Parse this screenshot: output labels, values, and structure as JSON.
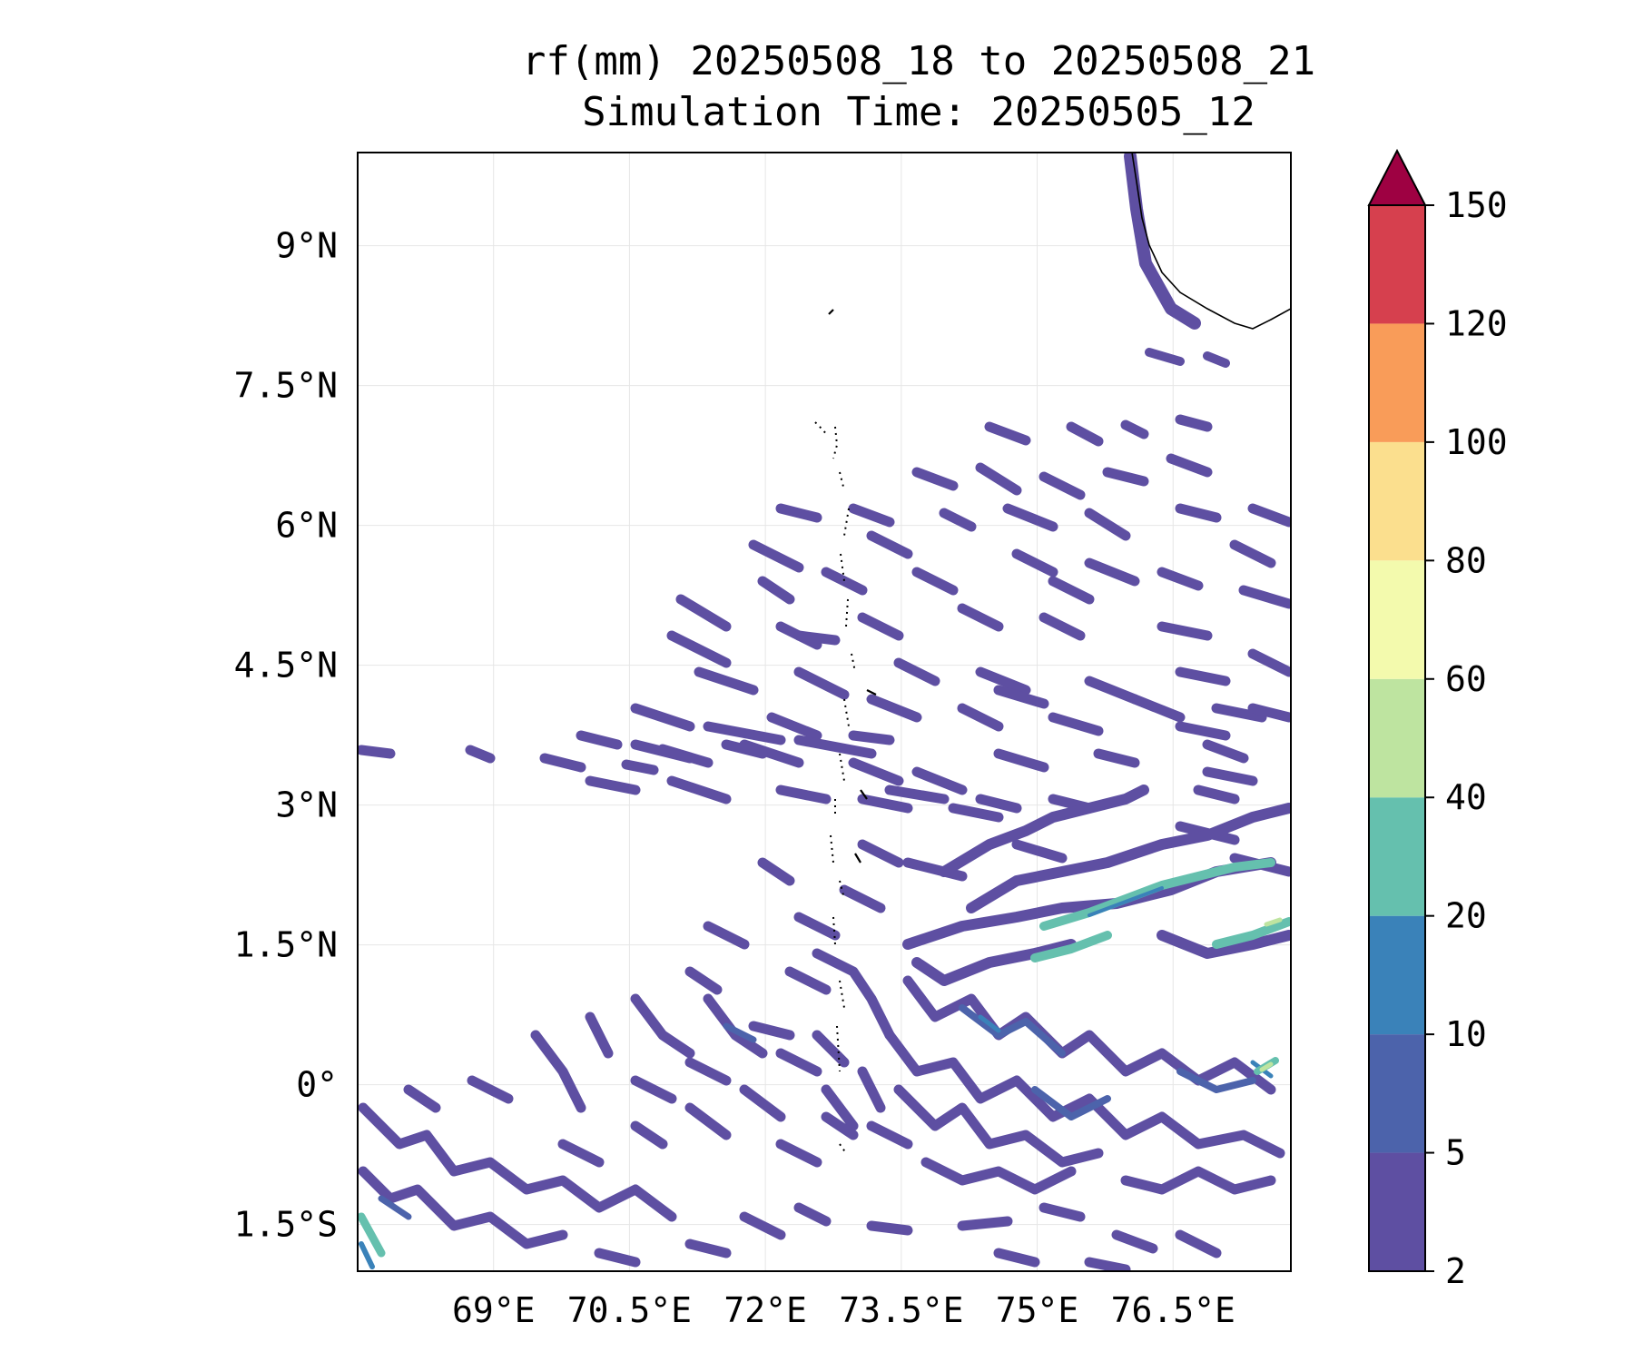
{
  "title": {
    "line1": "rf(mm) 20250508_18 to 20250508_21",
    "line2": "Simulation Time: 20250505_12"
  },
  "map": {
    "variable": "rf(mm)",
    "lon_ticks": [
      {
        "value": 69.0,
        "label": "69°E"
      },
      {
        "value": 70.5,
        "label": "70.5°E"
      },
      {
        "value": 72.0,
        "label": "72°E"
      },
      {
        "value": 73.5,
        "label": "73.5°E"
      },
      {
        "value": 75.0,
        "label": "75°E"
      },
      {
        "value": 76.5,
        "label": "76.5°E"
      }
    ],
    "lat_ticks": [
      {
        "value": 9.0,
        "label": "9°N"
      },
      {
        "value": 7.5,
        "label": "7.5°N"
      },
      {
        "value": 6.0,
        "label": "6°N"
      },
      {
        "value": 4.5,
        "label": "4.5°N"
      },
      {
        "value": 3.0,
        "label": "3°N"
      },
      {
        "value": 1.5,
        "label": "1.5°N"
      },
      {
        "value": 0.0,
        "label": "0°"
      },
      {
        "value": -1.5,
        "label": "1.5°S"
      }
    ],
    "grid": true
  },
  "colorbar": {
    "levels": [
      2,
      5,
      10,
      20,
      40,
      60,
      80,
      100,
      120,
      150
    ],
    "colors": [
      "#5e4fa2",
      "#4c63ab",
      "#3a82b9",
      "#65c0ae",
      "#bee4a0",
      "#f3faad",
      "#fbdf8e",
      "#f99c59",
      "#d6404e"
    ],
    "extend_color": "#9e0142",
    "extend": "max"
  }
}
